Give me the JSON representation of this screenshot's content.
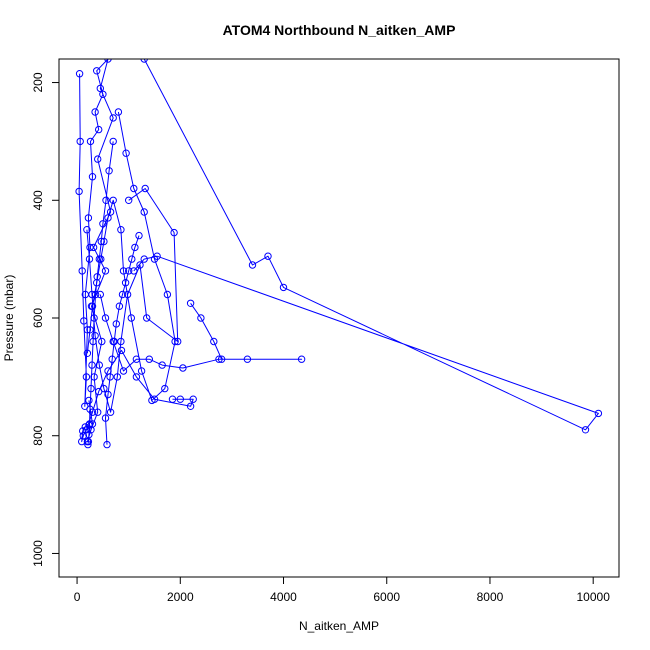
{
  "chart_data": {
    "type": "line",
    "title": "ATOM4 Northbound N_aitken_AMP",
    "xlabel": "N_aitken_AMP",
    "ylabel": "Pressure (mbar)",
    "xlim": [
      -350,
      10500
    ],
    "ylim": [
      1040,
      160
    ],
    "y_reversed": true,
    "grid": false,
    "legend": "none",
    "color": "#0000ff",
    "x_ticks": [
      0,
      2000,
      4000,
      6000,
      8000,
      10000
    ],
    "y_ticks": [
      200,
      400,
      600,
      800,
      1000
    ],
    "series": [
      {
        "x": [
          50,
          60,
          40,
          100,
          130,
          180,
          150,
          200,
          160,
          250,
          220,
          300,
          260,
          420,
          350,
          500,
          380,
          600,
          450,
          700,
          400,
          650,
          320,
          550,
          280,
          480,
          330,
          400,
          270,
          200,
          300,
          230
        ],
        "y": [
          185,
          300,
          385,
          520,
          605,
          700,
          750,
          620,
          560,
          480,
          430,
          360,
          300,
          280,
          250,
          220,
          180,
          160,
          210,
          260,
          330,
          420,
          480,
          520,
          580,
          640,
          700,
          760,
          790,
          810,
          780,
          740
        ]
      },
      {
        "x": [
          800,
          950,
          1100,
          1300,
          1500,
          1750,
          1900,
          1700,
          1450,
          1250,
          1050,
          900,
          850,
          700,
          600,
          520,
          460,
          380,
          300,
          250,
          200
        ],
        "y": [
          250,
          320,
          380,
          420,
          500,
          560,
          640,
          720,
          740,
          690,
          600,
          520,
          450,
          400,
          430,
          470,
          500,
          540,
          580,
          620,
          660
        ]
      },
      {
        "x": [
          1000,
          1320,
          1880,
          1950,
          1350,
          1220,
          980,
          850,
          780,
          650,
          520,
          430,
          350,
          290,
          240,
          190
        ],
        "y": [
          400,
          380,
          455,
          640,
          600,
          510,
          560,
          640,
          700,
          760,
          720,
          680,
          630,
          560,
          500,
          450
        ]
      },
      {
        "x": [
          2200,
          2400,
          2650,
          2800,
          3300,
          4350,
          2750,
          2050,
          1650,
          1400,
          1150,
          900,
          700,
          550,
          450
        ],
        "y": [
          575,
          600,
          640,
          670,
          670,
          670,
          670,
          685,
          680,
          670,
          670,
          690,
          640,
          600,
          560
        ]
      },
      {
        "x": [
          1300,
          3400,
          3700,
          4000,
          9850,
          10100,
          1550,
          1300,
          1100
        ],
        "y": [
          160,
          510,
          495,
          548,
          790,
          762,
          495,
          500,
          520
        ]
      },
      {
        "x": [
          1850,
          2000,
          2250,
          2200,
          1500,
          1150,
          860,
          600,
          420,
          300,
          180,
          120,
          90,
          110,
          160,
          230
        ],
        "y": [
          738,
          738,
          738,
          750,
          738,
          700,
          655,
          690,
          725,
          760,
          790,
          800,
          810,
          792,
          785,
          782
        ]
      },
      {
        "x": [
          700,
          620,
          560,
          500,
          470,
          430,
          390,
          360,
          330,
          310,
          290,
          270,
          250,
          240,
          230,
          220,
          210
        ],
        "y": [
          300,
          350,
          400,
          440,
          470,
          500,
          530,
          560,
          600,
          640,
          680,
          720,
          755,
          780,
          798,
          810,
          815
        ]
      },
      {
        "x": [
          580,
          550,
          600,
          640,
          680,
          720,
          760,
          820,
          880,
          940,
          1000,
          1060,
          1120,
          1200
        ],
        "y": [
          815,
          770,
          730,
          700,
          670,
          640,
          610,
          580,
          560,
          540,
          520,
          500,
          480,
          460
        ]
      }
    ]
  }
}
